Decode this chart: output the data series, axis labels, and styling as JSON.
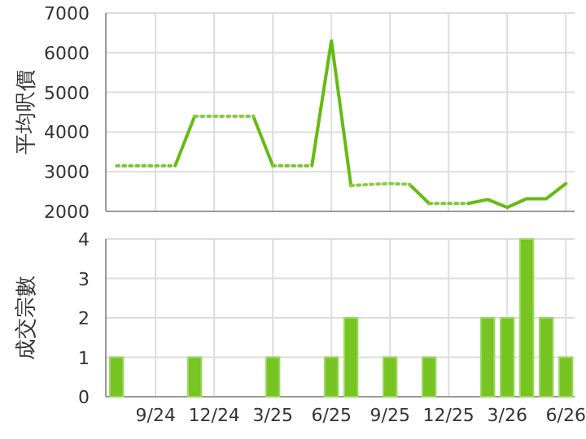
{
  "chart_data": [
    {
      "type": "line",
      "ylabel": "平均呎價",
      "categories": [
        null,
        null,
        null,
        null,
        null,
        null,
        null,
        null,
        null,
        null,
        null,
        null,
        null,
        null,
        null,
        null,
        null,
        null,
        null,
        null,
        null,
        null,
        null,
        null
      ],
      "tick_labels": "y",
      "grid": true,
      "ylim": [
        2000,
        7000
      ],
      "yticks": [
        2000,
        3000,
        4000,
        5000,
        6000,
        7000
      ],
      "series": [
        {
          "color": "#66bb11",
          "line_style": "solid",
          "values": [
            null,
            null,
            null,
            3150,
            4400,
            null,
            null,
            4400,
            3150,
            null,
            3150,
            6300,
            2650,
            null,
            null,
            2680,
            2200,
            null,
            2200,
            2300,
            2100,
            2320,
            2320,
            2700
          ]
        },
        {
          "color": "#7cc832",
          "line_style": "dotted",
          "values": [
            3150,
            3150,
            3150,
            3150,
            null,
            null,
            null,
            null,
            3150,
            3150,
            3150,
            null,
            null,
            null,
            null,
            null,
            2200,
            2200,
            2200,
            null,
            null,
            null,
            null,
            null
          ]
        },
        {
          "color": "#88cc44",
          "line_style": "dotted",
          "values": [
            null,
            null,
            null,
            null,
            4400,
            4400,
            4400,
            4400,
            null,
            null,
            null,
            null,
            2650,
            2680,
            2700,
            2680,
            null,
            null,
            null,
            null,
            null,
            null,
            null,
            null
          ]
        }
      ]
    },
    {
      "type": "bar",
      "ylabel": "成交宗數",
      "categories": [
        null,
        null,
        "9/24",
        null,
        null,
        "12/24",
        null,
        null,
        "3/25",
        null,
        null,
        "6/25",
        null,
        null,
        "9/25",
        null,
        null,
        "12/25",
        null,
        null,
        "3/26",
        null,
        null,
        "6/26"
      ],
      "grid": true,
      "ylim": [
        0,
        4
      ],
      "yticks": [
        0,
        1,
        2,
        3,
        4
      ],
      "color": "#77c422",
      "values": [
        1,
        0,
        0,
        0,
        1,
        0,
        0,
        0,
        1,
        0,
        0,
        1,
        2,
        0,
        1,
        0,
        1,
        0,
        0,
        2,
        2,
        4,
        2,
        1
      ]
    }
  ]
}
